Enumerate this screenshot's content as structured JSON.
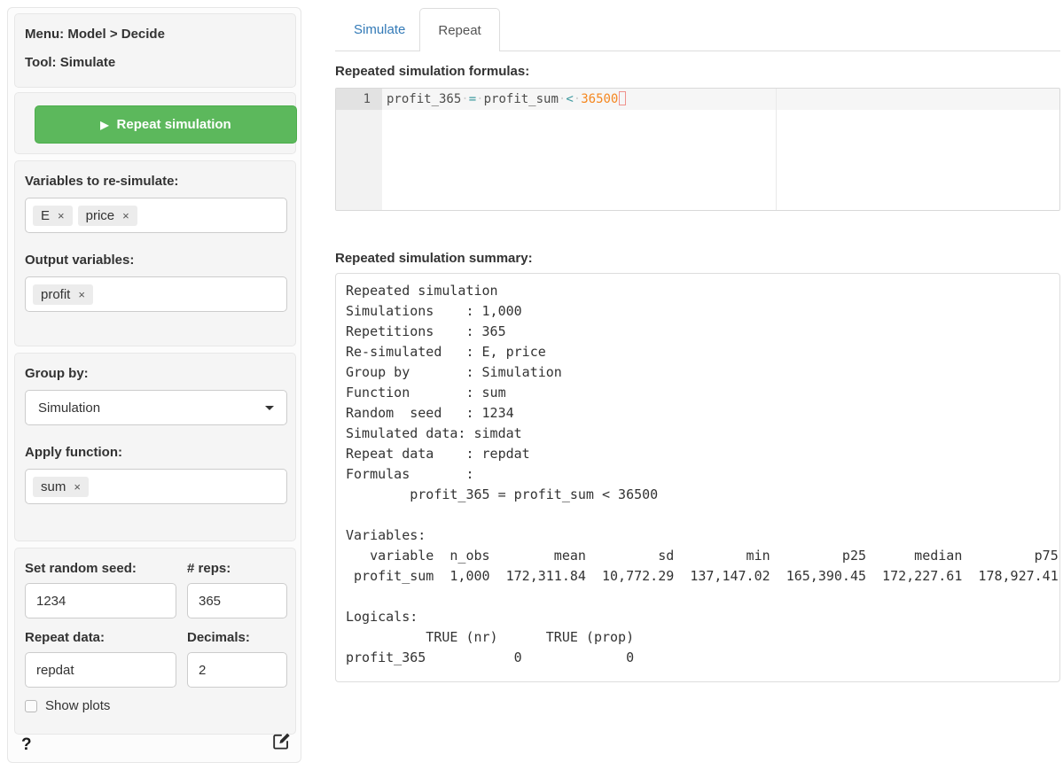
{
  "sidebar": {
    "menu_label": "Menu: Model > Decide",
    "tool_label": "Tool: Simulate",
    "run_button_label": "Repeat simulation",
    "play_icon": "▶",
    "remove_icon": "×",
    "resim_label": "Variables to re-simulate:",
    "resim_tags": [
      "E",
      "price"
    ],
    "output_label": "Output variables:",
    "output_tags": [
      "profit"
    ],
    "group_label": "Group by:",
    "group_value": "Simulation",
    "fun_label": "Apply function:",
    "fun_tags": [
      "sum"
    ],
    "seed_label": "Set random seed:",
    "seed_value": "1234",
    "reps_label": "# reps:",
    "reps_value": "365",
    "repdat_label": "Repeat data:",
    "repdat_value": "repdat",
    "dec_label": "Decimals:",
    "dec_value": "2",
    "show_plots_label": "Show plots",
    "help_icon": "?"
  },
  "tabs": [
    {
      "label": "Simulate",
      "active": false
    },
    {
      "label": "Repeat",
      "active": true
    }
  ],
  "formulas": {
    "heading": "Repeated simulation formulas:",
    "line_number": "1",
    "tokens": [
      {
        "text": "profit_365",
        "type": "id"
      },
      {
        "text": "·",
        "type": "ws"
      },
      {
        "text": "=",
        "type": "op"
      },
      {
        "text": "·",
        "type": "ws"
      },
      {
        "text": "profit_sum",
        "type": "id"
      },
      {
        "text": "·",
        "type": "ws"
      },
      {
        "text": "<",
        "type": "op"
      },
      {
        "text": "·",
        "type": "ws"
      },
      {
        "text": "36500",
        "type": "num"
      },
      {
        "text": "",
        "type": "cursor"
      }
    ]
  },
  "summary": {
    "heading": "Repeated simulation summary:",
    "lines": [
      "Repeated simulation",
      "Simulations    : 1,000",
      "Repetitions    : 365",
      "Re-simulated   : E, price",
      "Group by       : Simulation",
      "Function       : sum",
      "Random  seed   : 1234",
      "Simulated data: simdat",
      "Repeat data    : repdat",
      "Formulas       :",
      "        profit_365 = profit_sum < 36500",
      "",
      "Variables:",
      "   variable  n_obs        mean         sd         min         p25      median         p75",
      " profit_sum  1,000  172,311.84  10,772.29  137,147.02  165,390.45  172,227.61  178,927.41",
      "",
      "Logicals:",
      "          TRUE (nr)      TRUE (prop)",
      "profit_365           0             0"
    ]
  },
  "colors": {
    "accent_blue": "#337ab7",
    "button_green": "#5cb85c",
    "operator_teal": "#3e999f",
    "number_orange": "#f5871f"
  }
}
